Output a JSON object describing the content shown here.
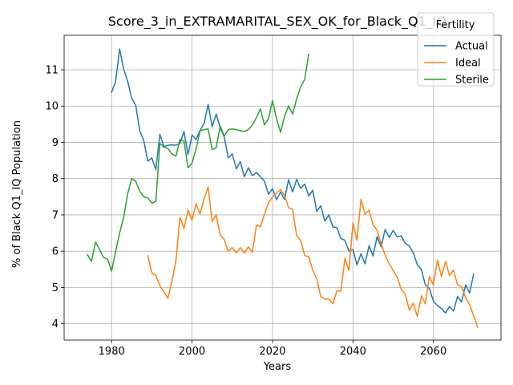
{
  "chart_data": {
    "type": "line",
    "title": "Score_3_in_EXTRAMARITAL_SEX_OK_for_Black_Q1_IQ",
    "xlabel": "Years",
    "ylabel": "% of Black Q1_IQ Population",
    "xlim": [
      1968.2,
      2076.8
    ],
    "ylim": [
      3.55,
      11.95
    ],
    "xticks": [
      1980,
      2000,
      2020,
      2040,
      2060
    ],
    "yticks": [
      4,
      5,
      6,
      7,
      8,
      9,
      10,
      11
    ],
    "grid": true,
    "legend": {
      "title": "Fertility",
      "placement": "top-right"
    },
    "series": [
      {
        "name": "Actual",
        "color": "#1f77b4",
        "x_start": 1980,
        "values": [
          10.38,
          10.68,
          11.57,
          11.02,
          10.68,
          10.22,
          10.02,
          9.32,
          9.05,
          8.48,
          8.57,
          8.25,
          9.22,
          8.88,
          8.92,
          8.93,
          8.92,
          8.97,
          9.3,
          8.66,
          9.2,
          9.08,
          9.33,
          9.52,
          10.05,
          9.43,
          9.78,
          9.4,
          9.15,
          8.57,
          8.68,
          8.27,
          8.47,
          8.05,
          8.3,
          8.08,
          8.17,
          8.05,
          7.93,
          7.57,
          7.72,
          7.42,
          7.63,
          7.43,
          7.97,
          7.63,
          7.98,
          7.73,
          7.85,
          7.52,
          7.68,
          7.1,
          7.25,
          6.83,
          7.0,
          6.67,
          6.65,
          6.35,
          6.3,
          6.0,
          6.05,
          5.62,
          5.93,
          5.65,
          6.15,
          5.87,
          6.4,
          6.12,
          6.6,
          6.38,
          6.57,
          6.4,
          6.42,
          6.22,
          6.15,
          5.95,
          5.63,
          5.5,
          5.07,
          4.97,
          4.62,
          4.5,
          4.42,
          4.3,
          4.47,
          4.35,
          4.75,
          4.6,
          5.07,
          4.85,
          5.37
        ]
      },
      {
        "name": "Ideal",
        "color": "#ff7f0e",
        "x_start": 1989,
        "values": [
          5.88,
          5.4,
          5.33,
          5.05,
          4.88,
          4.7,
          5.17,
          5.75,
          6.93,
          6.63,
          7.13,
          6.85,
          7.3,
          7.03,
          7.45,
          7.77,
          6.82,
          7.0,
          6.45,
          6.32,
          6.0,
          6.1,
          5.95,
          6.1,
          5.95,
          6.12,
          5.97,
          6.72,
          6.67,
          7.02,
          7.33,
          7.5,
          7.6,
          7.7,
          7.53,
          7.2,
          7.15,
          6.43,
          6.3,
          5.88,
          5.85,
          5.48,
          5.23,
          4.75,
          4.68,
          4.68,
          4.55,
          4.9,
          4.9,
          5.8,
          5.47,
          6.78,
          6.3,
          7.43,
          7.02,
          7.13,
          6.73,
          6.57,
          6.2,
          5.9,
          5.65,
          5.47,
          5.28,
          4.95,
          4.82,
          4.38,
          4.57,
          4.2,
          4.77,
          4.55,
          5.3,
          5.07,
          5.75,
          5.3,
          5.72,
          5.33,
          5.48,
          5.07,
          5.02,
          4.72,
          4.52,
          4.22,
          3.9
        ]
      },
      {
        "name": "Sterile",
        "color": "#2ca02c",
        "x_start": 1974,
        "values": [
          5.9,
          5.72,
          6.25,
          6.05,
          5.83,
          5.78,
          5.45,
          6.0,
          6.5,
          6.93,
          7.58,
          8.0,
          7.93,
          7.65,
          7.5,
          7.47,
          7.32,
          7.37,
          8.97,
          8.87,
          8.83,
          8.68,
          8.62,
          9.08,
          9.03,
          8.3,
          8.43,
          8.82,
          9.32,
          9.35,
          9.37,
          8.8,
          8.85,
          9.45,
          9.17,
          9.35,
          9.37,
          9.35,
          9.32,
          9.3,
          9.35,
          9.48,
          9.68,
          9.92,
          9.48,
          9.65,
          10.15,
          9.65,
          9.28,
          9.72,
          10.0,
          9.78,
          10.2,
          10.53,
          10.73,
          11.43
        ]
      }
    ]
  }
}
